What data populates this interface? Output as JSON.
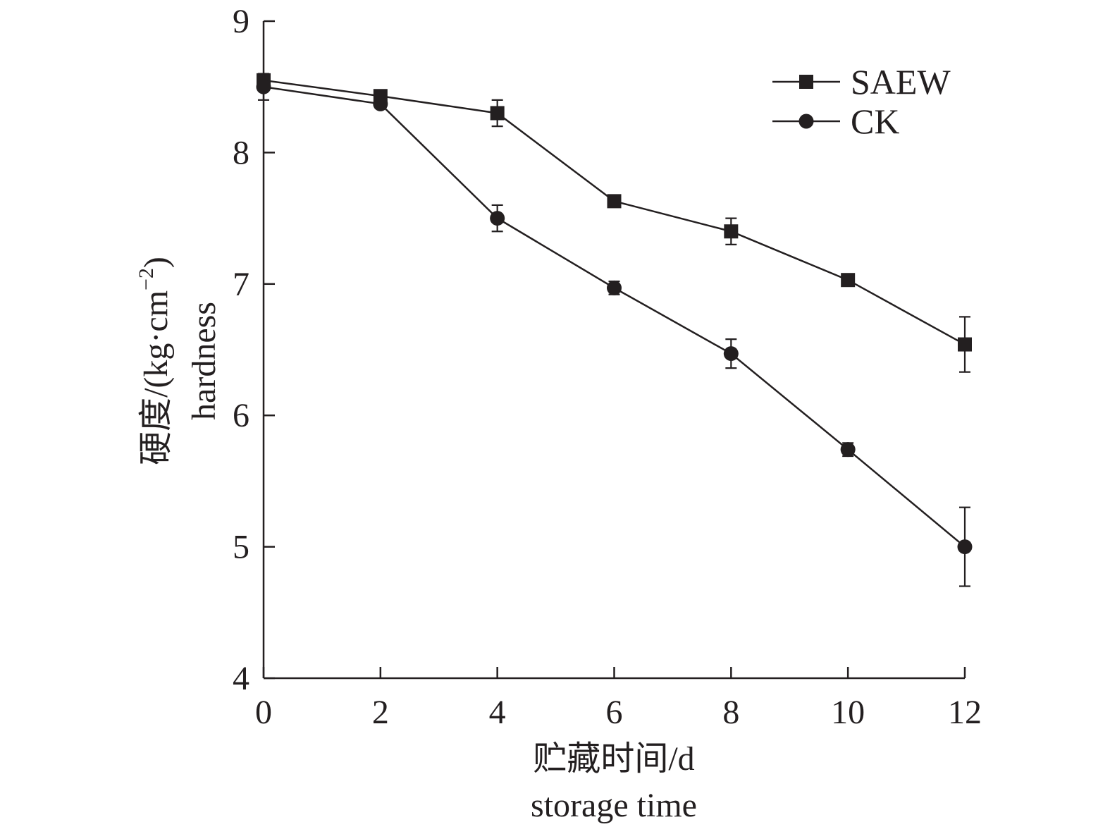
{
  "chart_data": {
    "type": "line",
    "xlabel": [
      "贮藏时间/d",
      "storage time"
    ],
    "ylabel": [
      "硬度/(kg·cm",
      "−2",
      ")",
      "hardness"
    ],
    "x": [
      0,
      2,
      4,
      6,
      8,
      10,
      12
    ],
    "xlim": [
      0,
      12
    ],
    "ylim": [
      4,
      9
    ],
    "xticks": [
      "0",
      "2",
      "4",
      "6",
      "8",
      "10",
      "12"
    ],
    "yticks": [
      "4",
      "5",
      "6",
      "7",
      "8",
      "9"
    ],
    "grid": false,
    "legend_position": "top-right",
    "series": [
      {
        "name": "SAEW",
        "marker": "square",
        "values": [
          8.55,
          8.43,
          8.3,
          7.63,
          7.4,
          7.03,
          6.54
        ],
        "errors": [
          0.04,
          0.03,
          0.1,
          0.04,
          0.1,
          0.04,
          0.21
        ]
      },
      {
        "name": "CK",
        "marker": "circle",
        "values": [
          8.5,
          8.37,
          7.5,
          6.97,
          6.47,
          5.74,
          5.0
        ],
        "errors": [
          0.1,
          0.03,
          0.1,
          0.05,
          0.11,
          0.05,
          0.3
        ]
      }
    ],
    "line_color": "#231f20"
  }
}
